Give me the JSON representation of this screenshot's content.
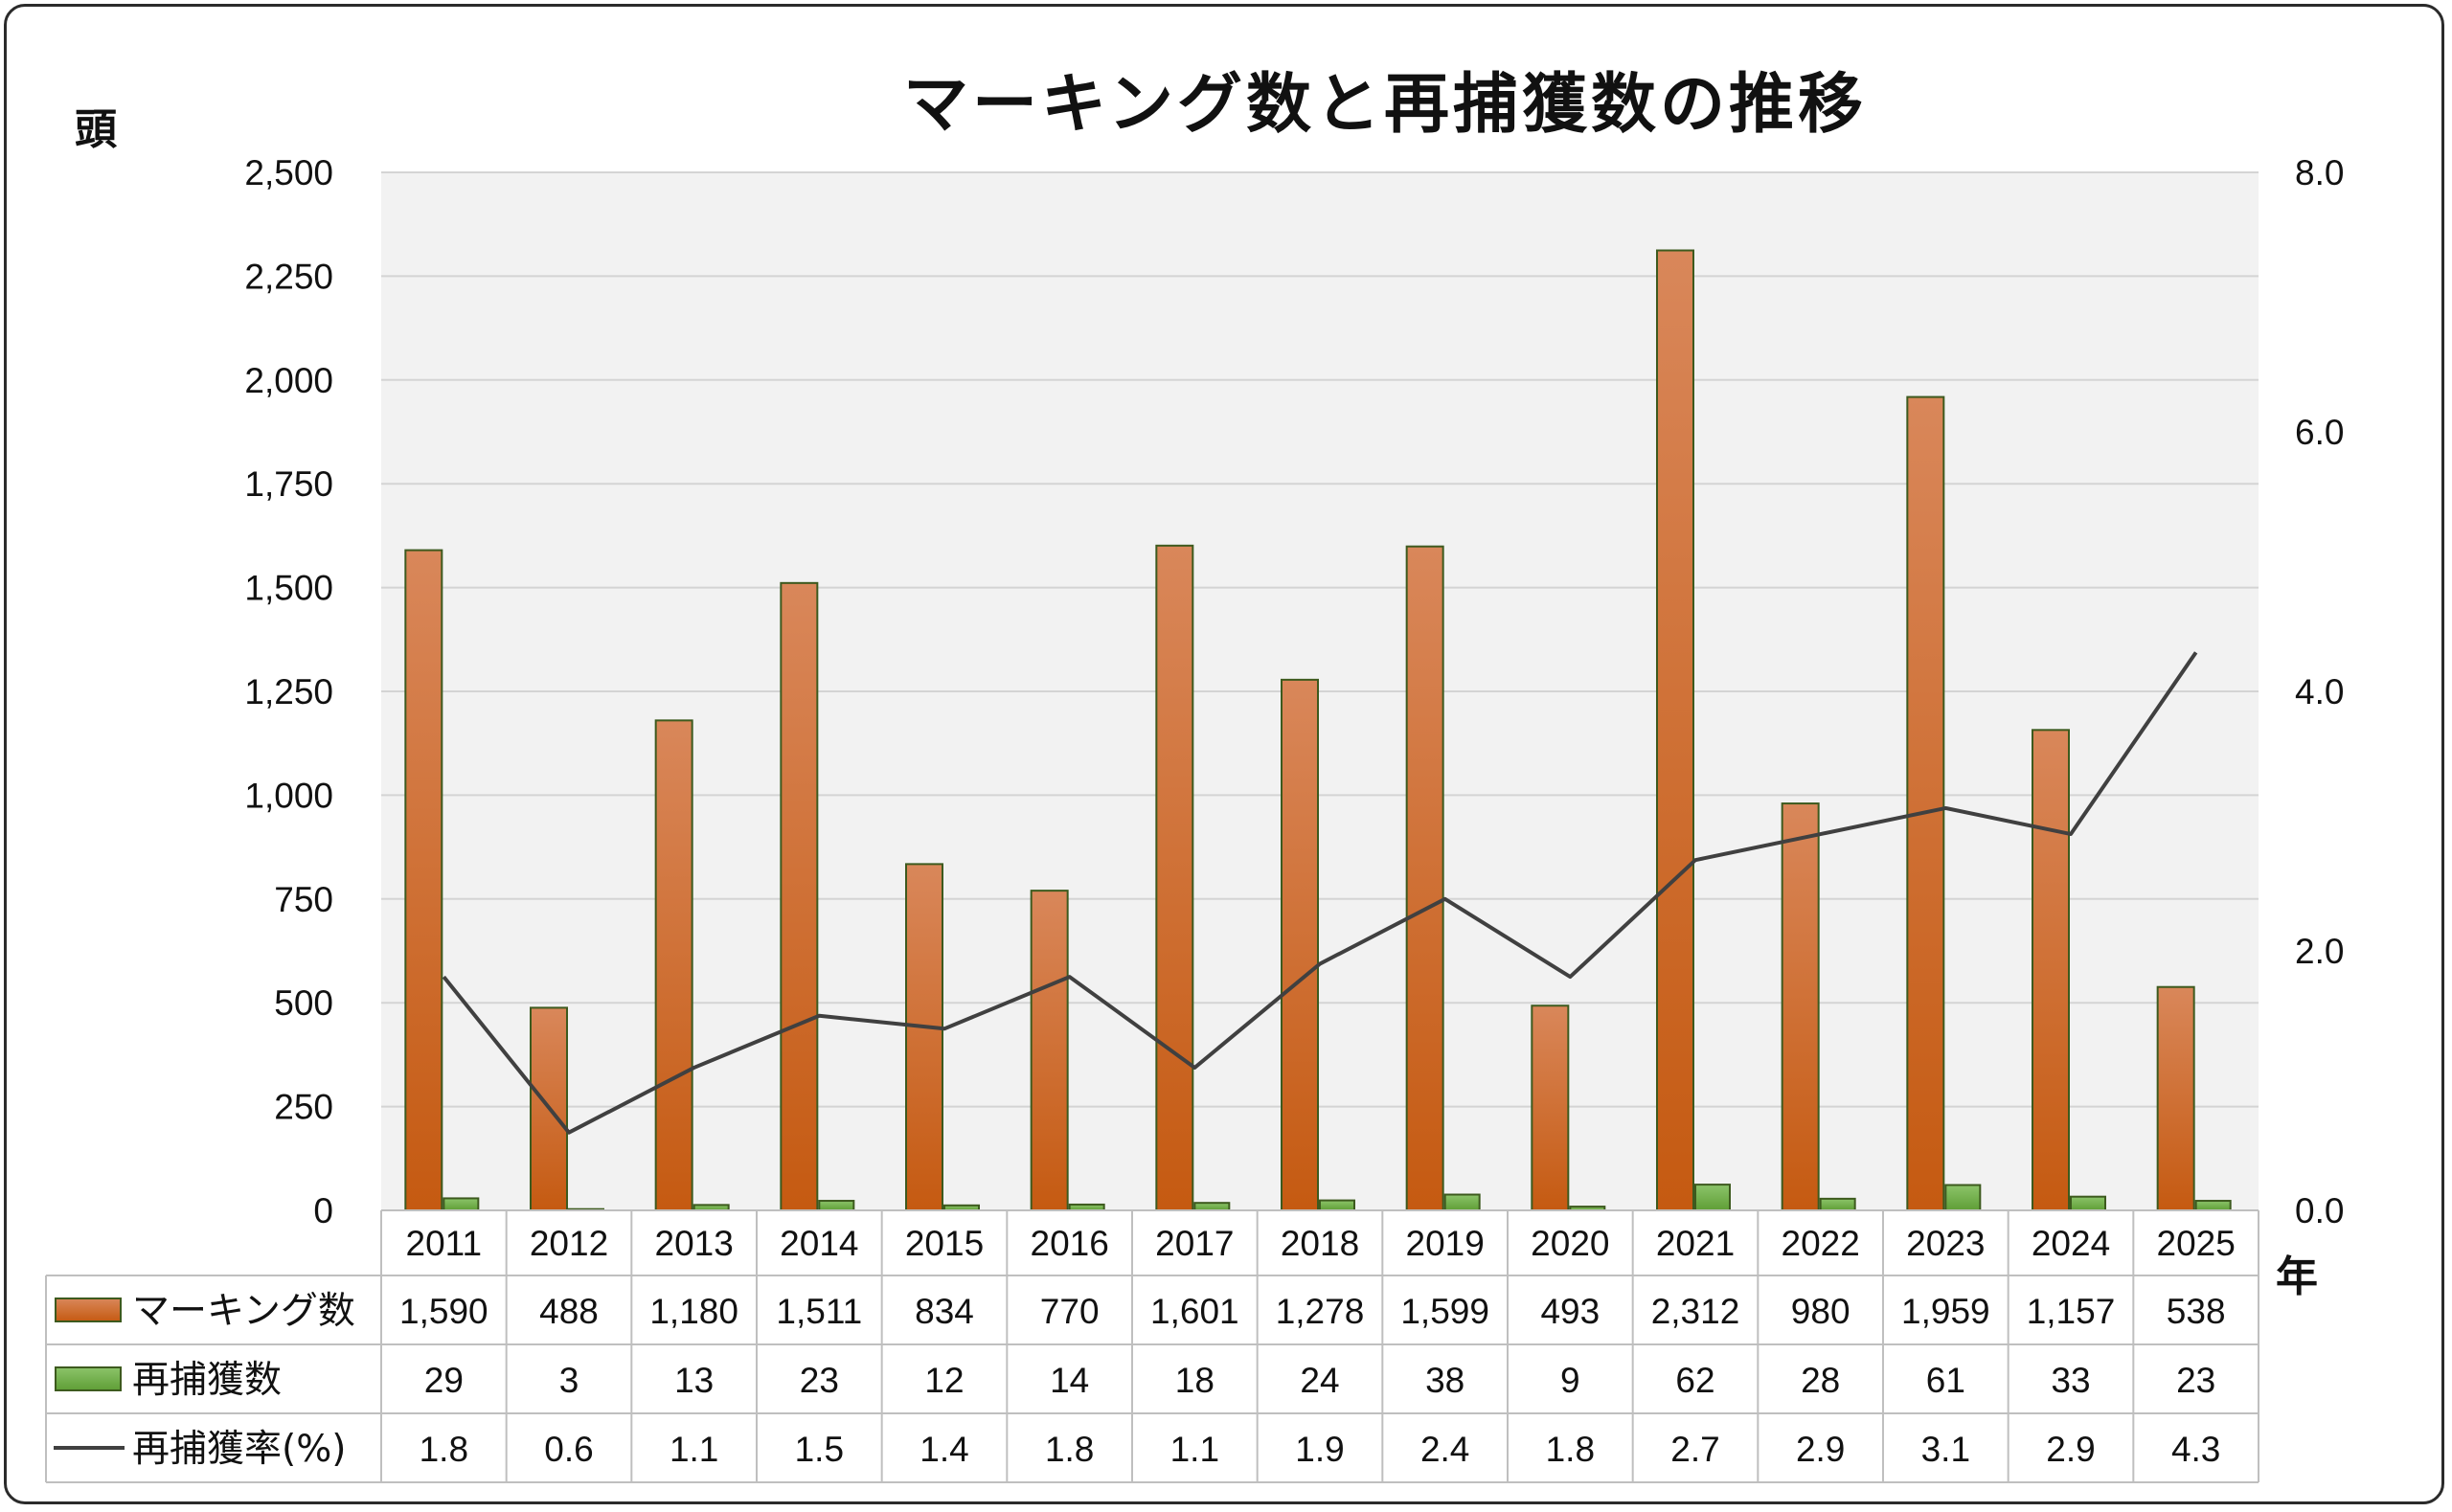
{
  "chart_data": {
    "type": "bar",
    "title": "マーキング数と再捕獲数の推移",
    "ylabel": "頭",
    "xlabel": "年",
    "categories": [
      "2011",
      "2012",
      "2013",
      "2014",
      "2015",
      "2016",
      "2017",
      "2018",
      "2019",
      "2020",
      "2021",
      "2022",
      "2023",
      "2024",
      "2025"
    ],
    "ylim": [
      0,
      2500
    ],
    "y_ticks": [
      "0",
      "250",
      "500",
      "750",
      "1,000",
      "1,250",
      "1,500",
      "1,750",
      "2,000",
      "2,250",
      "2,500"
    ],
    "y2lim": [
      0,
      8.0
    ],
    "y2_ticks": [
      "0.0",
      "2.0",
      "4.0",
      "6.0",
      "8.0"
    ],
    "grid": true,
    "legend": "data-table",
    "series": [
      {
        "name": "マーキング数",
        "kind": "bar",
        "axis": "left",
        "color": "#c55a11",
        "values": [
          1590,
          488,
          1180,
          1511,
          834,
          770,
          1601,
          1278,
          1599,
          493,
          2312,
          980,
          1959,
          1157,
          538
        ],
        "labels": [
          "1,590",
          "488",
          "1,180",
          "1,511",
          "834",
          "770",
          "1,601",
          "1,278",
          "1,599",
          "493",
          "2,312",
          "980",
          "1,959",
          "1,157",
          "538"
        ]
      },
      {
        "name": "再捕獲数",
        "kind": "bar",
        "axis": "left",
        "color": "#70ad47",
        "values": [
          29,
          3,
          13,
          23,
          12,
          14,
          18,
          24,
          38,
          9,
          62,
          28,
          61,
          33,
          23
        ],
        "labels": [
          "29",
          "3",
          "13",
          "23",
          "12",
          "14",
          "18",
          "24",
          "38",
          "9",
          "62",
          "28",
          "61",
          "33",
          "23"
        ]
      },
      {
        "name": "再捕獲率(%)",
        "kind": "line",
        "axis": "right",
        "color": "#404040",
        "values": [
          1.8,
          0.6,
          1.1,
          1.5,
          1.4,
          1.8,
          1.1,
          1.9,
          2.4,
          1.8,
          2.7,
          2.9,
          3.1,
          2.9,
          4.3
        ],
        "labels": [
          "1.8",
          "0.6",
          "1.1",
          "1.5",
          "1.4",
          "1.8",
          "1.1",
          "1.9",
          "2.4",
          "1.8",
          "2.7",
          "2.9",
          "3.1",
          "2.9",
          "4.3"
        ]
      }
    ]
  }
}
